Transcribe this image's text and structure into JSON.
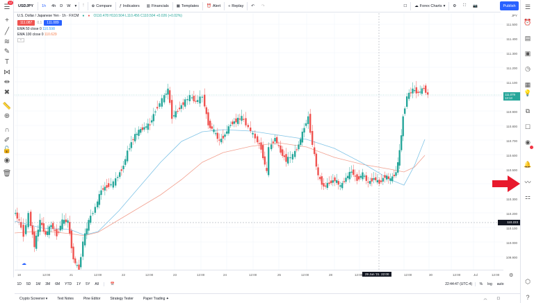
{
  "header": {
    "symbol": "USDJPY",
    "timeframes": [
      "1h",
      "4h",
      "D",
      "W"
    ],
    "compare": "Compare",
    "indicators": "Indicators",
    "financials": "Financials",
    "templates": "Templates",
    "alert": "Alert",
    "replay": "Replay",
    "layout_name": "Forex Charts",
    "publish": "Publish",
    "notif_count": "12"
  },
  "legend": {
    "title": "U.S. Dollar / Japanese Yen · 1h · FXCM",
    "ohlc": "O110.478 H110.504 L110.456 C110.504 +0.026 (+0.02%)",
    "sell": "111.087",
    "spread": "0.1",
    "buy": "111.089",
    "ema50": "EMA 50 close 0",
    "ema50_val": "110.598",
    "ema100": "EMA 100 close 0",
    "ema100_val": "110.629"
  },
  "price_axis": {
    "currency": "JPY",
    "ticks": [
      "111.500",
      "111.400",
      "111.300",
      "111.200",
      "111.100",
      "111.000",
      "110.900",
      "110.800",
      "110.700",
      "110.600",
      "110.500",
      "110.400",
      "110.300",
      "110.200",
      "110.100",
      "110.000",
      "109.900"
    ],
    "last_price": "111.079",
    "countdown": "13:13",
    "crosshair_price": "110.223"
  },
  "time_axis": {
    "ticks": [
      "18",
      "12:00",
      "21",
      "12:00",
      "22",
      "12:00",
      "23",
      "12:00",
      "24",
      "12:00",
      "25",
      "12:00",
      "28",
      "12:00",
      "29",
      "12:00",
      "30",
      "12:00",
      "Jul",
      "12:00",
      "2",
      "12:00"
    ],
    "crosshair_time": "29 Jun '21  22:00"
  },
  "range_bar": {
    "ranges": [
      "1D",
      "5D",
      "1M",
      "3M",
      "6M",
      "YTD",
      "1Y",
      "5Y",
      "All"
    ],
    "clock": "22:44:47 (UTC-4)",
    "pct": "%",
    "log": "log",
    "auto": "auto"
  },
  "bottom_tabs": [
    "Crypto Screener",
    "Text Notes",
    "Pine Editor",
    "Strategy Tester",
    "Paper Trading"
  ],
  "colors": {
    "up": "#26a69a",
    "down": "#ef5350",
    "ema50": "#7fc3e6",
    "ema100": "#f2a08f",
    "accent": "#2962ff",
    "arrow": "#e8192c"
  }
}
